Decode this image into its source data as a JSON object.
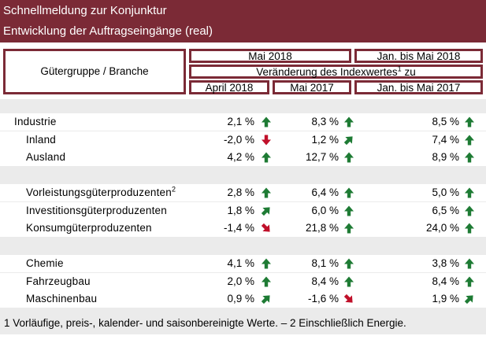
{
  "title": {
    "line1": "Schnellmeldung zur Konjunktur",
    "line2": "Entwicklung der Auftragseingänge (real)"
  },
  "header": {
    "group_label": "Gütergruppe / Branche",
    "mai_2018": "Mai 2018",
    "jan_mai_2018": "Jan. bis Mai 2018",
    "change_label": "Veränderung des Indexwertes",
    "change_sup": "1",
    "change_suffix": " zu",
    "april_2018": "April 2018",
    "mai_2017": "Mai 2017",
    "jan_mai_2017": "Jan. bis Mai 2017"
  },
  "colors": {
    "brand": "#7b2a36",
    "arrow_green": "#1e7b34",
    "arrow_red": "#c0102a",
    "band": "#ebebeb"
  },
  "rows": [
    {
      "label": "Industrie",
      "sup": "",
      "indent": false,
      "v1": "2,1 %",
      "a1": "up",
      "v2": "8,3 %",
      "a2": "up",
      "v3": "8,5 %",
      "a3": "up"
    },
    {
      "label": "Inland",
      "sup": "",
      "indent": true,
      "v1": "-2,0 %",
      "a1": "down",
      "v2": "1,2 %",
      "a2": "up-right",
      "v3": "7,4 %",
      "a3": "up"
    },
    {
      "label": "Ausland",
      "sup": "",
      "indent": true,
      "v1": "4,2 %",
      "a1": "up",
      "v2": "12,7 %",
      "a2": "up",
      "v3": "8,9 %",
      "a3": "up"
    },
    {
      "label": "Vorleistungsgüterproduzenten",
      "sup": "2",
      "indent": true,
      "v1": "2,8 %",
      "a1": "up",
      "v2": "6,4 %",
      "a2": "up",
      "v3": "5,0 %",
      "a3": "up"
    },
    {
      "label": "Investitionsgüterproduzenten",
      "sup": "",
      "indent": true,
      "v1": "1,8 %",
      "a1": "up-right",
      "v2": "6,0 %",
      "a2": "up",
      "v3": "6,5 %",
      "a3": "up"
    },
    {
      "label": "Konsumgüterproduzenten",
      "sup": "",
      "indent": true,
      "v1": "-1,4 %",
      "a1": "down-right",
      "v2": "21,8 %",
      "a2": "up",
      "v3": "24,0 %",
      "a3": "up"
    },
    {
      "label": "Chemie",
      "sup": "",
      "indent": true,
      "v1": "4,1 %",
      "a1": "up",
      "v2": "8,1 %",
      "a2": "up",
      "v3": "3,8 %",
      "a3": "up"
    },
    {
      "label": "Fahrzeugbau",
      "sup": "",
      "indent": true,
      "v1": "2,0 %",
      "a1": "up",
      "v2": "8,4 %",
      "a2": "up",
      "v3": "8,4 %",
      "a3": "up"
    },
    {
      "label": "Maschinenbau",
      "sup": "",
      "indent": true,
      "v1": "0,9 %",
      "a1": "up-right",
      "v2": "-1,6 %",
      "a2": "down-right",
      "v3": "1,9 %",
      "a3": "up-right"
    }
  ],
  "footnote": "1 Vorläufige, preis-, kalender- und saisonbereinigte Werte. – 2 Einschließlich Energie."
}
